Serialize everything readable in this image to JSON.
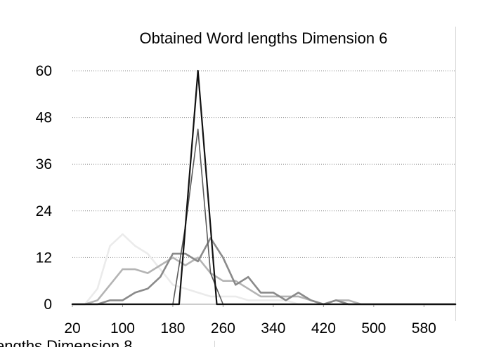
{
  "chart_data": {
    "type": "line",
    "title": "Obtained Word lengths Dimension 6",
    "xlabel": "",
    "ylabel": "",
    "x_ticks": [
      "20",
      "100",
      "180",
      "260",
      "340",
      "420",
      "500",
      "580"
    ],
    "y_ticks": [
      "0",
      "12",
      "24",
      "36",
      "48",
      "60"
    ],
    "xlim": [
      20,
      630
    ],
    "ylim": [
      0,
      60
    ],
    "grid": "horizontal-dotted",
    "series": [
      {
        "color": "#ebebeb",
        "x": [
          20,
          40,
          60,
          80,
          100,
          120,
          140,
          160,
          180,
          200,
          220,
          240,
          260,
          280,
          300,
          320,
          340,
          360,
          380,
          400,
          420,
          440,
          460,
          480,
          500,
          540,
          580,
          630
        ],
        "y": [
          0,
          0,
          4,
          15,
          18,
          15,
          13,
          9,
          5,
          4,
          3,
          2,
          2,
          2,
          1,
          1,
          1,
          1,
          0,
          0,
          0,
          0,
          0,
          0,
          0,
          0,
          0,
          0
        ]
      },
      {
        "color": "#b4b4b4",
        "x": [
          20,
          40,
          60,
          80,
          100,
          120,
          140,
          160,
          180,
          200,
          220,
          240,
          260,
          280,
          300,
          320,
          340,
          360,
          380,
          400,
          420,
          440,
          460,
          480,
          500,
          540,
          580,
          630
        ],
        "y": [
          0,
          0,
          1,
          5,
          9,
          9,
          8,
          10,
          12,
          10,
          12,
          8,
          6,
          6,
          4,
          2,
          2,
          2,
          2,
          1,
          0,
          1,
          1,
          0,
          0,
          0,
          0,
          0
        ]
      },
      {
        "color": "#8a8a8a",
        "x": [
          20,
          40,
          60,
          80,
          100,
          120,
          140,
          160,
          180,
          200,
          220,
          240,
          260,
          280,
          300,
          320,
          340,
          360,
          380,
          400,
          420,
          440,
          460,
          480,
          500,
          540,
          580,
          630
        ],
        "y": [
          0,
          0,
          0,
          1,
          1,
          3,
          4,
          7,
          13,
          13,
          11,
          17,
          12,
          5,
          7,
          3,
          3,
          1,
          3,
          1,
          0,
          1,
          0,
          0,
          0,
          0,
          0,
          0
        ]
      },
      {
        "color": "#5a5a5a",
        "x": [
          20,
          180,
          200,
          220,
          240,
          260,
          630
        ],
        "y": [
          0,
          0,
          20,
          45,
          8,
          0,
          0
        ]
      },
      {
        "color": "#111111",
        "x": [
          20,
          190,
          220,
          250,
          260,
          630
        ],
        "y": [
          0,
          0,
          60,
          0,
          0,
          0
        ]
      }
    ]
  },
  "page": {
    "cut_off_text": "engths Dimension 8"
  }
}
